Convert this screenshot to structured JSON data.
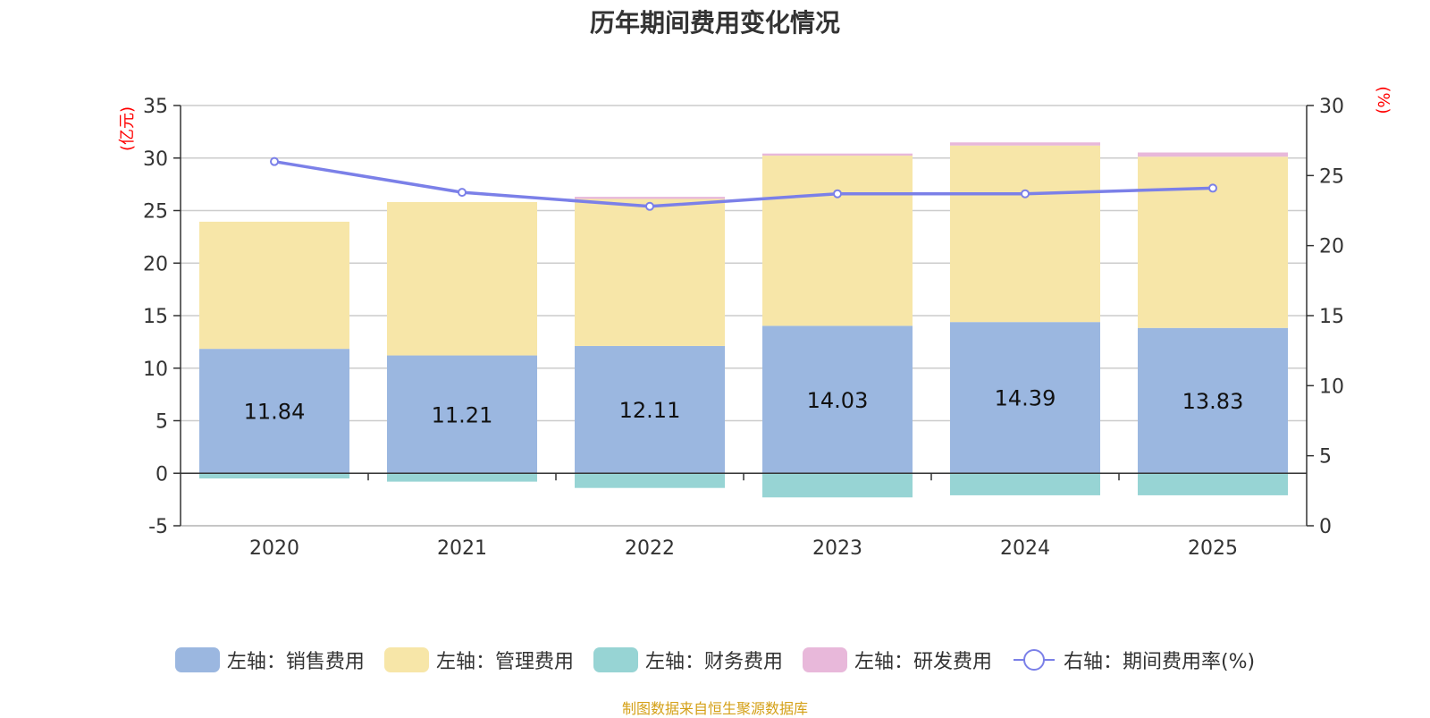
{
  "chart_data": {
    "type": "bar",
    "stacked": true,
    "title": "历年期间费用变化情况",
    "categories": [
      "2020",
      "2021",
      "2022",
      "2023",
      "2024",
      "2025"
    ],
    "left_axis": {
      "unit_label": "(亿元)",
      "min": -5,
      "max": 35,
      "ticks": [
        -5,
        0,
        5,
        10,
        15,
        20,
        25,
        30,
        35
      ]
    },
    "right_axis": {
      "unit_label": "(%)",
      "min": 0,
      "max": 30,
      "ticks": [
        0,
        5,
        10,
        15,
        20,
        25,
        30
      ]
    },
    "series": [
      {
        "name": "左轴：销售费用",
        "type": "bar",
        "axis": "left",
        "color": "#9bb7e0",
        "values": [
          11.84,
          11.21,
          12.11,
          14.03,
          14.39,
          13.83
        ],
        "show_labels": true
      },
      {
        "name": "左轴：管理费用",
        "type": "bar",
        "axis": "left",
        "color": "#f7e6a8",
        "values": [
          12.1,
          14.6,
          14.0,
          16.2,
          16.8,
          16.3
        ],
        "show_labels": false
      },
      {
        "name": "左轴：财务费用",
        "type": "bar",
        "axis": "left",
        "color": "#97d4d4",
        "values": [
          -0.5,
          -0.8,
          -1.4,
          -2.3,
          -2.1,
          -2.1
        ],
        "show_labels": false
      },
      {
        "name": "左轴：研发费用",
        "type": "bar",
        "axis": "left",
        "color": "#e8b8da",
        "values": [
          0,
          0,
          0.2,
          0.2,
          0.3,
          0.4
        ],
        "show_labels": false
      },
      {
        "name": "右轴：期间费用率(%)",
        "type": "line",
        "axis": "right",
        "color": "#7b80e8",
        "values": [
          26.0,
          23.8,
          22.8,
          23.7,
          23.7,
          24.1
        ],
        "show_labels": false
      }
    ],
    "axis_label_color": "#ff0000",
    "grid": true
  },
  "source_text": "制图数据来自恒生聚源数据库",
  "source_color": "#d4a017"
}
